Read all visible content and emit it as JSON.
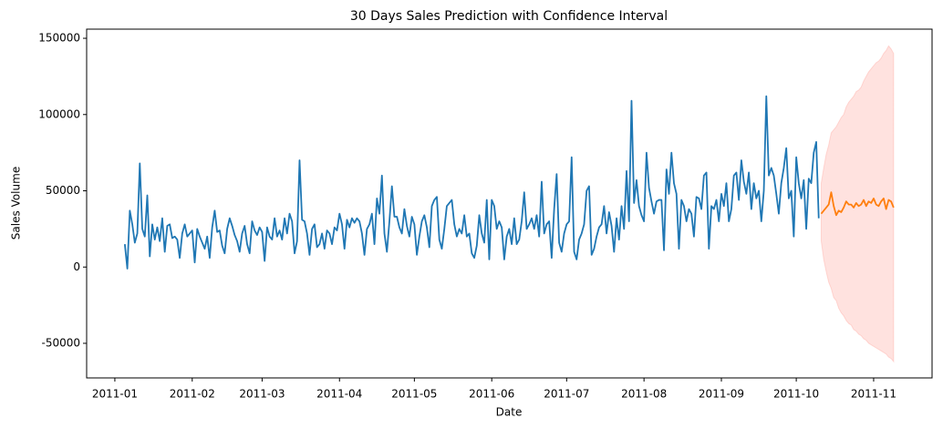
{
  "chart_data": {
    "type": "line",
    "title": "30 Days Sales Prediction with Confidence Interval",
    "xlabel": "Date",
    "ylabel": "Sales Volume",
    "xlim": [
      -11.3,
      327.4
    ],
    "ylim": [
      -72700,
      156000
    ],
    "xticks": [
      {
        "value": 0,
        "label": "2011-01"
      },
      {
        "value": 31,
        "label": "2011-02"
      },
      {
        "value": 59,
        "label": "2011-03"
      },
      {
        "value": 90,
        "label": "2011-04"
      },
      {
        "value": 120,
        "label": "2011-05"
      },
      {
        "value": 151,
        "label": "2011-06"
      },
      {
        "value": 181,
        "label": "2011-07"
      },
      {
        "value": 212,
        "label": "2011-08"
      },
      {
        "value": 243,
        "label": "2011-09"
      },
      {
        "value": 273,
        "label": "2011-10"
      },
      {
        "value": 304,
        "label": "2011-11"
      }
    ],
    "yticks": [
      -50000,
      0,
      50000,
      100000,
      150000
    ],
    "grid": false,
    "interval": {
      "color": "#ff9f94",
      "x": [
        283,
        284,
        285,
        286,
        287,
        288,
        289,
        290,
        291,
        292,
        293,
        294,
        295,
        296,
        297,
        298,
        299,
        300,
        301,
        302,
        303,
        304,
        305,
        306,
        307,
        308,
        309,
        310,
        311,
        312
      ],
      "lower": [
        17000,
        5000,
        -3000,
        -10000,
        -14000,
        -20000,
        -22000,
        -27000,
        -30000,
        -32000,
        -35000,
        -37000,
        -38000,
        -41000,
        -42000,
        -44000,
        -45000,
        -47000,
        -48000,
        -50000,
        -51000,
        -52000,
        -53000,
        -54000,
        -55000,
        -56000,
        -57000,
        -59000,
        -60000,
        -62000
      ],
      "upper": [
        55000,
        65000,
        74000,
        80000,
        88000,
        90000,
        92000,
        95000,
        98000,
        100000,
        105000,
        108000,
        110000,
        112000,
        115000,
        116000,
        118000,
        122000,
        125000,
        128000,
        130000,
        132000,
        134000,
        135000,
        137000,
        140000,
        142000,
        145000,
        143000,
        140000
      ]
    },
    "series": [
      {
        "color": "#1f77b4",
        "x": [
          4,
          5,
          6,
          7,
          8,
          9,
          10,
          11,
          12,
          13,
          14,
          15,
          16,
          17,
          18,
          19,
          20,
          21,
          22,
          23,
          24,
          25,
          26,
          27,
          28,
          29,
          30,
          31,
          32,
          33,
          34,
          35,
          36,
          37,
          38,
          39,
          40,
          41,
          42,
          43,
          44,
          45,
          46,
          47,
          48,
          49,
          50,
          51,
          52,
          53,
          54,
          55,
          56,
          57,
          58,
          59,
          60,
          61,
          62,
          63,
          64,
          65,
          66,
          67,
          68,
          69,
          70,
          71,
          72,
          73,
          74,
          75,
          76,
          77,
          78,
          79,
          80,
          81,
          82,
          83,
          84,
          85,
          86,
          87,
          88,
          89,
          90,
          91,
          92,
          93,
          94,
          95,
          96,
          97,
          98,
          99,
          100,
          101,
          102,
          103,
          104,
          105,
          106,
          107,
          108,
          109,
          110,
          111,
          112,
          113,
          114,
          115,
          116,
          117,
          118,
          119,
          120,
          121,
          122,
          123,
          124,
          125,
          126,
          127,
          128,
          129,
          130,
          131,
          132,
          133,
          134,
          135,
          136,
          137,
          138,
          139,
          140,
          141,
          142,
          143,
          144,
          145,
          146,
          147,
          148,
          149,
          150,
          151,
          152,
          153,
          154,
          155,
          156,
          157,
          158,
          159,
          160,
          161,
          162,
          163,
          164,
          165,
          166,
          167,
          168,
          169,
          170,
          171,
          172,
          173,
          174,
          175,
          176,
          177,
          178,
          179,
          180,
          181,
          182,
          183,
          184,
          185,
          186,
          187,
          188,
          189,
          190,
          191,
          192,
          193,
          194,
          195,
          196,
          197,
          198,
          199,
          200,
          201,
          202,
          203,
          204,
          205,
          206,
          207,
          208,
          209,
          210,
          211,
          212,
          213,
          214,
          215,
          216,
          217,
          218,
          219,
          220,
          221,
          222,
          223,
          224,
          225,
          226,
          227,
          228,
          229,
          230,
          231,
          232,
          233,
          234,
          235,
          236,
          237,
          238,
          239,
          240,
          241,
          242,
          243,
          244,
          245,
          246,
          247,
          248,
          249,
          250,
          251,
          252,
          253,
          254,
          255,
          256,
          257,
          258,
          259,
          260,
          261,
          262,
          263,
          264,
          265,
          266,
          267,
          268,
          269,
          270,
          271,
          272,
          273,
          274,
          275,
          276,
          277,
          278,
          279,
          280,
          281,
          282
        ],
        "values": [
          15000,
          -1000,
          37000,
          28000,
          16000,
          22000,
          68000,
          25000,
          20000,
          47000,
          7000,
          28000,
          18000,
          26000,
          17000,
          32000,
          10000,
          27000,
          28000,
          19000,
          20000,
          18000,
          6000,
          22000,
          28000,
          20000,
          22000,
          24000,
          3000,
          25000,
          20000,
          16000,
          12000,
          20000,
          6000,
          26000,
          37000,
          23000,
          24000,
          14000,
          9000,
          25000,
          32000,
          27000,
          21000,
          17000,
          10000,
          22000,
          27000,
          15000,
          9000,
          30000,
          24000,
          21000,
          26000,
          23000,
          4000,
          26000,
          20000,
          18000,
          32000,
          20000,
          24000,
          18000,
          32000,
          22000,
          35000,
          30000,
          9000,
          17000,
          70000,
          31000,
          30000,
          22000,
          8000,
          25000,
          28000,
          13000,
          15000,
          22000,
          12000,
          24000,
          22000,
          15000,
          26000,
          24000,
          35000,
          28000,
          12000,
          31000,
          26000,
          32000,
          29000,
          32000,
          30000,
          22000,
          8000,
          25000,
          28000,
          35000,
          15000,
          45000,
          35000,
          60000,
          22000,
          10000,
          30000,
          53000,
          33000,
          33000,
          26000,
          22000,
          38000,
          27000,
          20000,
          33000,
          28000,
          8000,
          20000,
          30000,
          34000,
          26000,
          13000,
          40000,
          44000,
          46000,
          18000,
          12000,
          25000,
          40000,
          42000,
          44000,
          28000,
          20000,
          25000,
          22000,
          34000,
          20000,
          22000,
          9000,
          6000,
          14000,
          34000,
          22000,
          16000,
          44000,
          5000,
          44000,
          40000,
          25000,
          30000,
          26000,
          5000,
          20000,
          25000,
          15000,
          32000,
          15000,
          18000,
          30000,
          49000,
          25000,
          28000,
          32000,
          25000,
          34000,
          20000,
          56000,
          22000,
          28000,
          30000,
          6000,
          38000,
          61000,
          16000,
          10000,
          22000,
          28000,
          30000,
          72000,
          10000,
          5000,
          18000,
          22000,
          28000,
          50000,
          53000,
          8000,
          12000,
          20000,
          26000,
          28000,
          40000,
          22000,
          36000,
          27000,
          10000,
          32000,
          18000,
          40000,
          25000,
          63000,
          30000,
          109000,
          42000,
          57000,
          40000,
          34000,
          30000,
          75000,
          52000,
          43000,
          35000,
          43000,
          44000,
          44000,
          11000,
          64000,
          48000,
          75000,
          55000,
          48000,
          12000,
          44000,
          40000,
          30000,
          38000,
          35000,
          20000,
          46000,
          45000,
          38000,
          60000,
          62000,
          12000,
          40000,
          38000,
          44000,
          30000,
          48000,
          40000,
          55000,
          30000,
          38000,
          60000,
          62000,
          44000,
          70000,
          56000,
          48000,
          62000,
          38000,
          55000,
          45000,
          50000,
          30000,
          50000,
          112000,
          60000,
          65000,
          60000,
          48000,
          35000,
          55000,
          65000,
          78000,
          45000,
          50000,
          20000,
          72000,
          55000,
          45000,
          57000,
          25000,
          58000,
          55000,
          75000,
          82000,
          32000
        ]
      },
      {
        "color": "#ff7f0e",
        "x": [
          283,
          284,
          285,
          286,
          287,
          288,
          289,
          290,
          291,
          292,
          293,
          294,
          295,
          296,
          297,
          298,
          299,
          300,
          301,
          302,
          303,
          304,
          305,
          306,
          307,
          308,
          309,
          310,
          311,
          312
        ],
        "values": [
          35000,
          37000,
          39000,
          41000,
          49000,
          40000,
          34000,
          37000,
          36000,
          39000,
          43000,
          41000,
          41000,
          39000,
          42000,
          40000,
          41000,
          44000,
          40000,
          43000,
          42000,
          45000,
          41000,
          40000,
          43000,
          45000,
          38000,
          44000,
          43000,
          39000
        ]
      }
    ]
  }
}
